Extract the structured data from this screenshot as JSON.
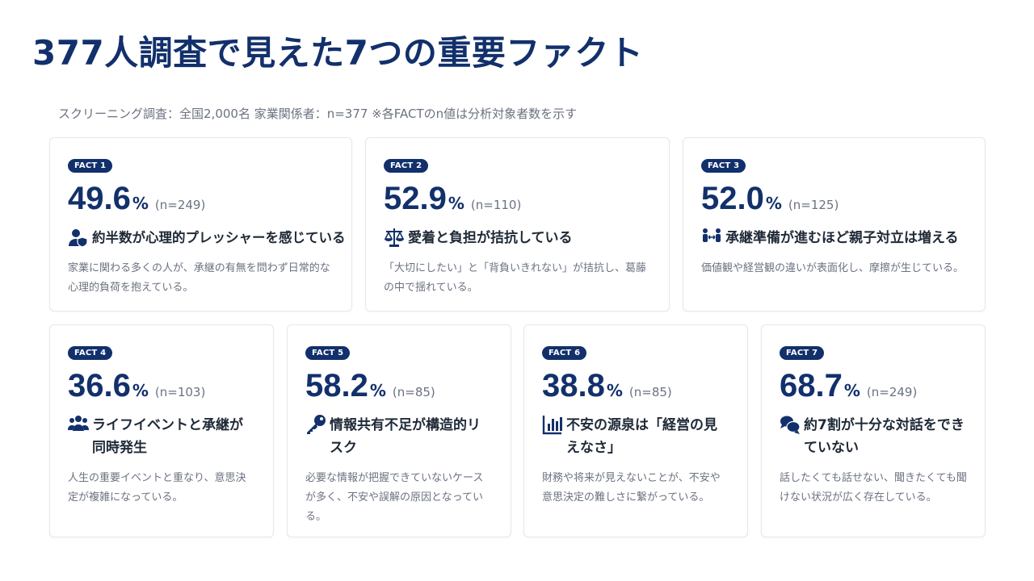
{
  "page": {
    "title": "377人調査で見えた7つの重要ファクト",
    "subtitle": "スクリーニング調査：全国2,000名 家業関係者：n=377 ※各FACTのn値は分析対象者数を示す"
  },
  "colors": {
    "accent": "#12306b",
    "muted": "#6b7280"
  },
  "facts": [
    {
      "badge": "FACT 1",
      "value": "49.6",
      "unit": "%",
      "n": "(n=249)",
      "icon": "user-shield-icon",
      "headline": "約半数が心理的プレッシャーを感じている",
      "desc": "家業に関わる多くの人が、承継の有無を問わず日常的な心理的負荷を抱えている。"
    },
    {
      "badge": "FACT 2",
      "value": "52.9",
      "unit": "%",
      "n": "(n=110)",
      "icon": "scale-balance-icon",
      "headline": "愛着と負担が拮抗している",
      "desc": "「大切にしたい」と「背負いきれない」が拮抗し、葛藤の中で揺れている。"
    },
    {
      "badge": "FACT 3",
      "value": "52.0",
      "unit": "%",
      "n": "(n=125)",
      "icon": "people-arrows-icon",
      "headline": "承継準備が進むほど親子対立は増える",
      "desc": "価値観や経営観の違いが表面化し、摩擦が生じている。"
    },
    {
      "badge": "FACT 4",
      "value": "36.6",
      "unit": "%",
      "n": "(n=103)",
      "icon": "users-group-icon",
      "headline": "ライフイベントと承継が同時発生",
      "desc": "人生の重要イベントと重なり、意思決定が複雑になっている。"
    },
    {
      "badge": "FACT 5",
      "value": "58.2",
      "unit": "%",
      "n": "(n=85)",
      "icon": "key-icon",
      "headline": "情報共有不足が構造的リスク",
      "desc": "必要な情報が把握できていないケースが多く、不安や誤解の原因となっている。"
    },
    {
      "badge": "FACT 6",
      "value": "38.8",
      "unit": "%",
      "n": "(n=85)",
      "icon": "bar-chart-icon",
      "headline": "不安の源泉は「経営の見えなさ」",
      "desc": "財務や将来が見えないことが、不安や意思決定の難しさに繋がっている。"
    },
    {
      "badge": "FACT 7",
      "value": "68.7",
      "unit": "%",
      "n": "(n=249)",
      "icon": "chat-bubbles-icon",
      "headline": "約7割が十分な対話をできていない",
      "desc": "話したくても話せない、聞きたくても聞けない状況が広く存在している。"
    }
  ]
}
